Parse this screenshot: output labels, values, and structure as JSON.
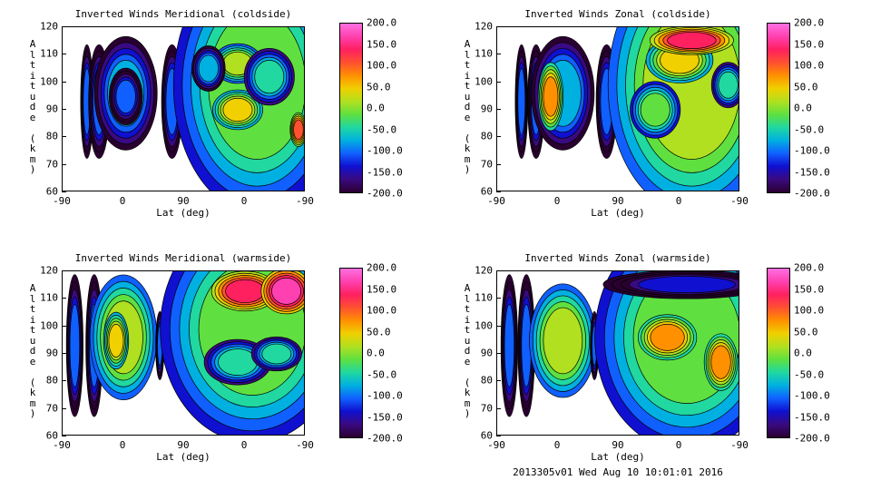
{
  "chart_data": [
    {
      "type": "heatmap",
      "title": "Inverted Winds Meridional (coldside)",
      "xlabel": "Lat (deg)",
      "ylabel": "Altitude (km)",
      "x_tick_labels": [
        "-90",
        "0",
        "90",
        "0",
        "-90"
      ],
      "y_ticks": [
        60,
        70,
        80,
        90,
        100,
        110,
        120
      ],
      "ylim": [
        60,
        120
      ],
      "colorbar_ticks": [
        "200.0",
        "150.0",
        "100.0",
        "50.0",
        "0.0",
        "-50.0",
        "-100.0",
        "-150.0",
        "-200.0"
      ],
      "zlim": [
        -200,
        200
      ],
      "contour_lines": true
    },
    {
      "type": "heatmap",
      "title": "Inverted Winds Zonal (coldside)",
      "xlabel": "Lat (deg)",
      "ylabel": "Altitude (km)",
      "x_tick_labels": [
        "-90",
        "0",
        "90",
        "0",
        "-90"
      ],
      "y_ticks": [
        60,
        70,
        80,
        90,
        100,
        110,
        120
      ],
      "ylim": [
        60,
        120
      ],
      "colorbar_ticks": [
        "200.0",
        "150.0",
        "100.0",
        "50.0",
        "0.0",
        "-50.0",
        "-100.0",
        "-150.0",
        "-200.0"
      ],
      "zlim": [
        -200,
        200
      ],
      "contour_lines": true
    },
    {
      "type": "heatmap",
      "title": "Inverted Winds Meridional (warmside)",
      "xlabel": "Lat (deg)",
      "ylabel": "Altitude (km)",
      "x_tick_labels": [
        "-90",
        "0",
        "90",
        "0",
        "-90"
      ],
      "y_ticks": [
        60,
        70,
        80,
        90,
        100,
        110,
        120
      ],
      "ylim": [
        60,
        120
      ],
      "colorbar_ticks": [
        "200.0",
        "150.0",
        "100.0",
        "50.0",
        "0.0",
        "-50.0",
        "-100.0",
        "-150.0",
        "-200.0"
      ],
      "zlim": [
        -200,
        200
      ],
      "contour_lines": true
    },
    {
      "type": "heatmap",
      "title": "Inverted Winds Zonal (warmside)",
      "xlabel": "Lat (deg)",
      "ylabel": "Altitude (km)",
      "x_tick_labels": [
        "-90",
        "0",
        "90",
        "0",
        "-90"
      ],
      "y_ticks": [
        60,
        70,
        80,
        90,
        100,
        110,
        120
      ],
      "ylim": [
        60,
        120
      ],
      "colorbar_ticks": [
        "200.0",
        "150.0",
        "100.0",
        "50.0",
        "0.0",
        "-50.0",
        "-100.0",
        "-150.0",
        "-200.0"
      ],
      "zlim": [
        -200,
        200
      ],
      "contour_lines": true
    }
  ],
  "footer": "2013305v01 Wed Aug 10 10:01:01 2016",
  "colormap": [
    "#2a0030",
    "#3a0a80",
    "#1010d0",
    "#1060ff",
    "#00b0e0",
    "#20d8a0",
    "#60e040",
    "#b0e020",
    "#f0d000",
    "#ff9000",
    "#ff5030",
    "#ff2060",
    "#ff40b0",
    "#ff70e0"
  ]
}
